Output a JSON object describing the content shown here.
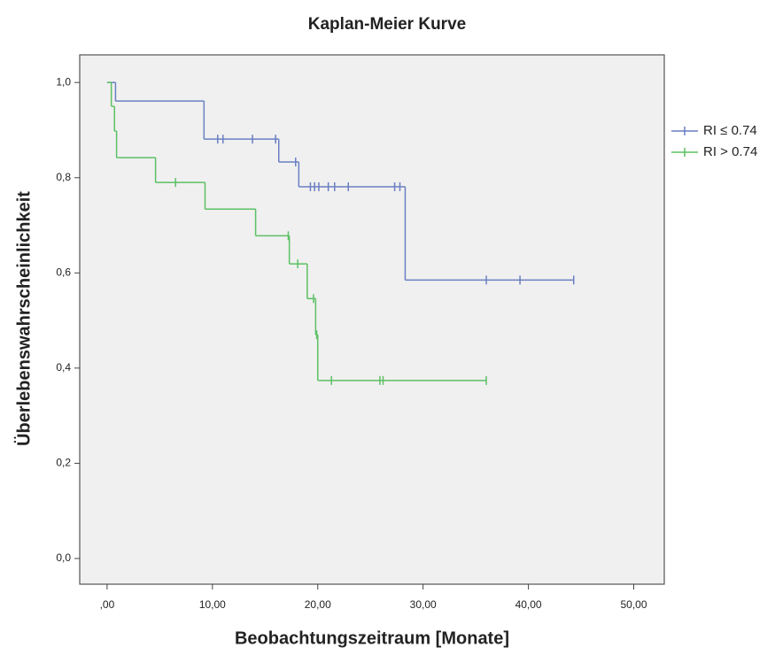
{
  "chart_data": {
    "type": "kaplan-meier",
    "title": "Kaplan-Meier Kurve",
    "xlabel": "Beobachtungszeitraum [Monate]",
    "ylabel": "Überlebenswahrscheinlichkeit",
    "xlim": [
      -2.6,
      52.9
    ],
    "ylim": [
      -0.054,
      1.058
    ],
    "xticks": [
      {
        "value": 0,
        "label": ",00"
      },
      {
        "value": 10,
        "label": "10,00"
      },
      {
        "value": 20,
        "label": "20,00"
      },
      {
        "value": 30,
        "label": "30,00"
      },
      {
        "value": 40,
        "label": "40,00"
      },
      {
        "value": 50,
        "label": "50,00"
      }
    ],
    "yticks": [
      {
        "value": 0,
        "label": "0,0"
      },
      {
        "value": 0.2,
        "label": "0,2"
      },
      {
        "value": 0.4,
        "label": "0,4"
      },
      {
        "value": 0.6,
        "label": "0,6"
      },
      {
        "value": 0.8,
        "label": "0,8"
      },
      {
        "value": 1.0,
        "label": "1,0"
      }
    ],
    "grid": false,
    "legend": "right",
    "series": [
      {
        "name": "RI ≤ 0.74",
        "color": "#6a7fc2",
        "x": [
          0,
          0.8,
          9.2,
          16.3,
          18.2,
          28.3,
          44.3
        ],
        "values": [
          1.0,
          0.961,
          0.881,
          0.833,
          0.781,
          0.585,
          0.585
        ],
        "censor_x": [
          10.5,
          11,
          13.8,
          16,
          17.9,
          19.3,
          19.7,
          20.1,
          21,
          21.6,
          22.9,
          27.3,
          27.8,
          36,
          39.2,
          44.3
        ],
        "censor_values": [
          0.881,
          0.881,
          0.881,
          0.881,
          0.833,
          0.781,
          0.781,
          0.781,
          0.781,
          0.781,
          0.781,
          0.781,
          0.781,
          0.585,
          0.585,
          0.585
        ]
      },
      {
        "name": "RI > 0.74",
        "color": "#5cc064",
        "x": [
          0,
          0.4,
          0.7,
          0.9,
          4.6,
          9.3,
          14.1,
          17.3,
          19,
          19.8,
          20,
          36
        ],
        "values": [
          1.0,
          0.95,
          0.898,
          0.842,
          0.79,
          0.734,
          0.678,
          0.619,
          0.546,
          0.47,
          0.374,
          0.374
        ],
        "censor_x": [
          6.5,
          17.2,
          18.1,
          19.6,
          19.9,
          21.3,
          25.9,
          26.2,
          36
        ],
        "censor_values": [
          0.79,
          0.678,
          0.619,
          0.546,
          0.47,
          0.374,
          0.374,
          0.374,
          0.374
        ]
      }
    ]
  }
}
